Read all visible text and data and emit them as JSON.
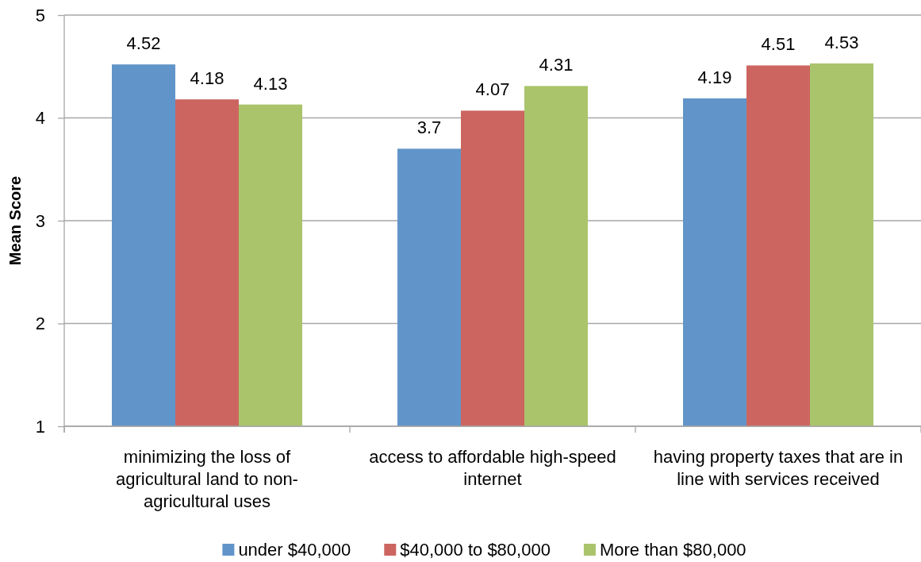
{
  "chart_data": {
    "type": "bar",
    "ylabel": "Mean Score",
    "categories": [
      "minimizing the loss of agricultural land to non-agricultural uses",
      "access to affordable high-speed internet",
      "having property taxes that are in line with services received"
    ],
    "series": [
      {
        "name": "under $40,000",
        "color": "#6195c9",
        "values": [
          4.52,
          3.7,
          4.19
        ]
      },
      {
        "name": "$40,000 to $80,000",
        "color": "#cc6560",
        "values": [
          4.18,
          4.07,
          4.51
        ]
      },
      {
        "name": "More than $80,000",
        "color": "#a9c46b",
        "values": [
          4.13,
          4.31,
          4.53
        ]
      }
    ],
    "ylim": [
      1,
      5
    ],
    "yticks": [
      1,
      2,
      3,
      4,
      5
    ],
    "grid": "y",
    "legend": "bottom",
    "data_labels": true
  }
}
